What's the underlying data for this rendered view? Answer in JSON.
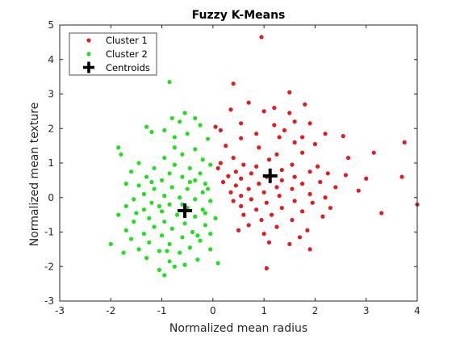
{
  "chart_data": {
    "type": "scatter",
    "title": "Fuzzy K-Means",
    "xlabel": "Normalized mean radius",
    "ylabel": "Normalized mean texture",
    "xlim": [
      -3,
      4
    ],
    "ylim": [
      -3,
      5
    ],
    "xticks": [
      "-3",
      "-2",
      "-1",
      "0",
      "1",
      "2",
      "3",
      "4"
    ],
    "yticks": [
      "-3",
      "-2",
      "-1",
      "0",
      "1",
      "2",
      "3",
      "4",
      "5"
    ],
    "grid": false,
    "legend_position": "top-left",
    "series": [
      {
        "name": "Cluster 1",
        "color": "#e41a1c",
        "marker": "dot",
        "points": [
          [
            0.95,
            4.65
          ],
          [
            0.4,
            3.3
          ],
          [
            1.5,
            3.05
          ],
          [
            0.7,
            2.75
          ],
          [
            1.8,
            2.7
          ],
          [
            1.2,
            2.6
          ],
          [
            1.0,
            2.5
          ],
          [
            1.5,
            2.45
          ],
          [
            0.35,
            2.55
          ],
          [
            1.6,
            2.2
          ],
          [
            1.9,
            2.15
          ],
          [
            0.55,
            2.15
          ],
          [
            1.2,
            2.1
          ],
          [
            0.05,
            2.05
          ],
          [
            0.15,
            1.95
          ],
          [
            1.4,
            1.95
          ],
          [
            2.2,
            1.85
          ],
          [
            0.85,
            1.85
          ],
          [
            1.75,
            1.75
          ],
          [
            0.55,
            1.72
          ],
          [
            1.3,
            1.75
          ],
          [
            2.55,
            1.78
          ],
          [
            1.6,
            1.6
          ],
          [
            2.0,
            1.55
          ],
          [
            0.25,
            1.5
          ],
          [
            0.9,
            1.45
          ],
          [
            3.15,
            1.3
          ],
          [
            3.75,
            1.6
          ],
          [
            1.75,
            1.3
          ],
          [
            1.25,
            1.25
          ],
          [
            2.65,
            1.15
          ],
          [
            0.4,
            1.15
          ],
          [
            1.1,
            1.1
          ],
          [
            0.15,
            1.0
          ],
          [
            0.6,
            0.95
          ],
          [
            1.55,
            0.95
          ],
          [
            0.85,
            0.9
          ],
          [
            2.05,
            0.9
          ],
          [
            0.1,
            0.85
          ],
          [
            1.35,
            0.8
          ],
          [
            0.45,
            0.75
          ],
          [
            1.9,
            0.75
          ],
          [
            2.25,
            0.7
          ],
          [
            0.75,
            0.7
          ],
          [
            0.3,
            0.62
          ],
          [
            1.6,
            0.6
          ],
          [
            1.05,
            0.6
          ],
          [
            2.6,
            0.65
          ],
          [
            0.55,
            0.55
          ],
          [
            1.35,
            0.5
          ],
          [
            3.0,
            0.55
          ],
          [
            3.7,
            0.6
          ],
          [
            0.2,
            0.45
          ],
          [
            2.1,
            0.45
          ],
          [
            0.9,
            0.4
          ],
          [
            1.75,
            0.4
          ],
          [
            0.45,
            0.35
          ],
          [
            1.25,
            0.3
          ],
          [
            2.4,
            0.3
          ],
          [
            0.7,
            0.25
          ],
          [
            1.55,
            0.25
          ],
          [
            0.35,
            0.15
          ],
          [
            2.85,
            0.2
          ],
          [
            1.0,
            0.15
          ],
          [
            1.9,
            0.1
          ],
          [
            0.55,
            0.05
          ],
          [
            1.3,
            0.05
          ],
          [
            2.2,
            0.0
          ],
          [
            0.75,
            -0.05
          ],
          [
            0.4,
            -0.1
          ],
          [
            1.6,
            -0.1
          ],
          [
            1.05,
            -0.15
          ],
          [
            1.95,
            -0.15
          ],
          [
            4.0,
            -0.2
          ],
          [
            0.55,
            -0.25
          ],
          [
            1.35,
            -0.3
          ],
          [
            2.3,
            -0.3
          ],
          [
            0.85,
            -0.35
          ],
          [
            1.75,
            -0.4
          ],
          [
            3.3,
            -0.45
          ],
          [
            0.6,
            -0.5
          ],
          [
            1.15,
            -0.5
          ],
          [
            2.15,
            -0.55
          ],
          [
            0.95,
            -0.65
          ],
          [
            1.55,
            -0.65
          ],
          [
            0.7,
            -0.8
          ],
          [
            1.25,
            -0.85
          ],
          [
            1.85,
            -0.95
          ],
          [
            0.5,
            -0.95
          ],
          [
            1.0,
            -1.05
          ],
          [
            1.7,
            -1.15
          ],
          [
            1.1,
            -1.3
          ],
          [
            1.5,
            -1.35
          ],
          [
            1.9,
            -1.5
          ],
          [
            1.05,
            -2.05
          ]
        ]
      },
      {
        "name": "Cluster 2",
        "color": "#1fe01f",
        "marker": "dot",
        "points": [
          [
            -0.85,
            3.35
          ],
          [
            -0.55,
            2.45
          ],
          [
            -0.35,
            2.3
          ],
          [
            -0.8,
            2.3
          ],
          [
            -0.65,
            2.2
          ],
          [
            -1.3,
            2.05
          ],
          [
            -0.25,
            2.1
          ],
          [
            -0.95,
            1.95
          ],
          [
            -1.2,
            1.9
          ],
          [
            -0.5,
            1.85
          ],
          [
            -0.75,
            1.75
          ],
          [
            -0.1,
            1.7
          ],
          [
            -1.85,
            1.45
          ],
          [
            -0.35,
            1.4
          ],
          [
            -1.8,
            1.25
          ],
          [
            -0.6,
            1.25
          ],
          [
            -0.95,
            1.15
          ],
          [
            -0.2,
            1.1
          ],
          [
            -1.45,
            1.0
          ],
          [
            -0.75,
            0.95
          ],
          [
            -0.05,
            0.95
          ],
          [
            -1.15,
            0.85
          ],
          [
            -0.45,
            0.85
          ],
          [
            -1.6,
            0.75
          ],
          [
            -0.85,
            0.7
          ],
          [
            -0.25,
            0.7
          ],
          [
            -1.3,
            0.6
          ],
          [
            -0.6,
            0.6
          ],
          [
            -1.0,
            0.5
          ],
          [
            -0.35,
            0.5
          ],
          [
            -1.7,
            0.4
          ],
          [
            -0.15,
            0.4
          ],
          [
            -1.45,
            0.35
          ],
          [
            -0.8,
            0.3
          ],
          [
            -1.15,
            0.25
          ],
          [
            -0.5,
            0.25
          ],
          [
            -1.35,
            0.1
          ],
          [
            -0.2,
            0.15
          ],
          [
            -0.95,
            0.05
          ],
          [
            -0.65,
            0.0
          ],
          [
            -1.55,
            -0.05
          ],
          [
            -0.35,
            -0.05
          ],
          [
            -1.2,
            -0.15
          ],
          [
            -0.05,
            -0.1
          ],
          [
            -0.85,
            -0.2
          ],
          [
            -1.7,
            -0.25
          ],
          [
            -0.5,
            -0.3
          ],
          [
            -1.35,
            -0.35
          ],
          [
            -0.2,
            -0.35
          ],
          [
            -1.0,
            -0.4
          ],
          [
            -1.85,
            -0.5
          ],
          [
            -0.7,
            -0.5
          ],
          [
            -0.35,
            -0.55
          ],
          [
            -1.25,
            -0.6
          ],
          [
            0.05,
            -0.6
          ],
          [
            -0.95,
            -0.7
          ],
          [
            -1.55,
            -0.7
          ],
          [
            -0.55,
            -0.75
          ],
          [
            -0.15,
            -0.8
          ],
          [
            -1.15,
            -0.85
          ],
          [
            -0.8,
            -0.9
          ],
          [
            -1.7,
            -0.95
          ],
          [
            -0.4,
            -1.0
          ],
          [
            -1.35,
            -1.05
          ],
          [
            -0.05,
            -1.05
          ],
          [
            -1.0,
            -1.1
          ],
          [
            -0.6,
            -1.15
          ],
          [
            -1.6,
            -1.2
          ],
          [
            -0.25,
            -1.25
          ],
          [
            -1.25,
            -1.3
          ],
          [
            -0.85,
            -1.35
          ],
          [
            -2.0,
            -1.35
          ],
          [
            -0.45,
            -1.45
          ],
          [
            -1.45,
            -1.5
          ],
          [
            -0.05,
            -1.5
          ],
          [
            -1.05,
            -1.55
          ],
          [
            -0.65,
            -1.6
          ],
          [
            -1.3,
            -1.75
          ],
          [
            -0.3,
            -1.8
          ],
          [
            -0.85,
            -1.85
          ],
          [
            -0.55,
            -1.95
          ],
          [
            -1.05,
            -2.1
          ],
          [
            -0.75,
            -2.0
          ],
          [
            -0.95,
            -2.25
          ],
          [
            0.1,
            -1.9
          ],
          [
            -1.75,
            -1.6
          ],
          [
            -0.15,
            -0.45
          ],
          [
            -0.75,
            1.45
          ],
          [
            -0.45,
            0.45
          ],
          [
            -1.05,
            -0.25
          ],
          [
            -0.3,
            -1.1
          ],
          [
            -0.6,
            -0.2
          ],
          [
            -1.2,
            0.45
          ],
          [
            -0.9,
            -1.55
          ],
          [
            -0.1,
            0.25
          ],
          [
            -1.5,
            -0.45
          ]
        ]
      },
      {
        "name": "Centroids",
        "color": "#000000",
        "marker": "plus",
        "points": [
          [
            -0.55,
            -0.38
          ],
          [
            1.12,
            0.63
          ]
        ]
      }
    ]
  }
}
